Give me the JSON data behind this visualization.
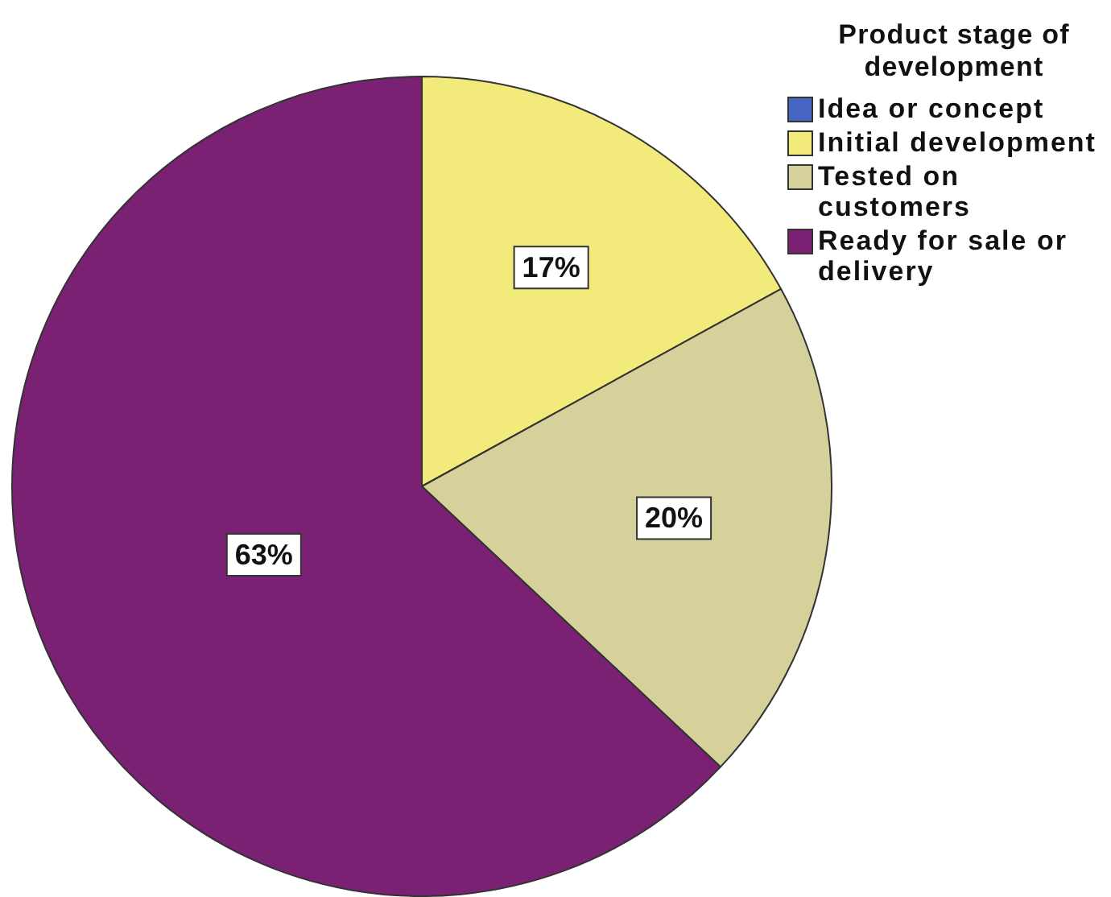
{
  "chart_data": {
    "type": "pie",
    "legend_title": "Product stage of development",
    "categories": [
      "Idea or concept",
      "Initial development",
      "Tested on customers",
      "Ready for sale or delivery"
    ],
    "values": [
      0,
      17,
      20,
      63
    ],
    "colors": [
      "#4565c0",
      "#f2ea7a",
      "#d6d09a",
      "#7b2174"
    ],
    "value_labels": [
      null,
      "17%",
      "20%",
      "63%"
    ],
    "legend": "top right"
  }
}
